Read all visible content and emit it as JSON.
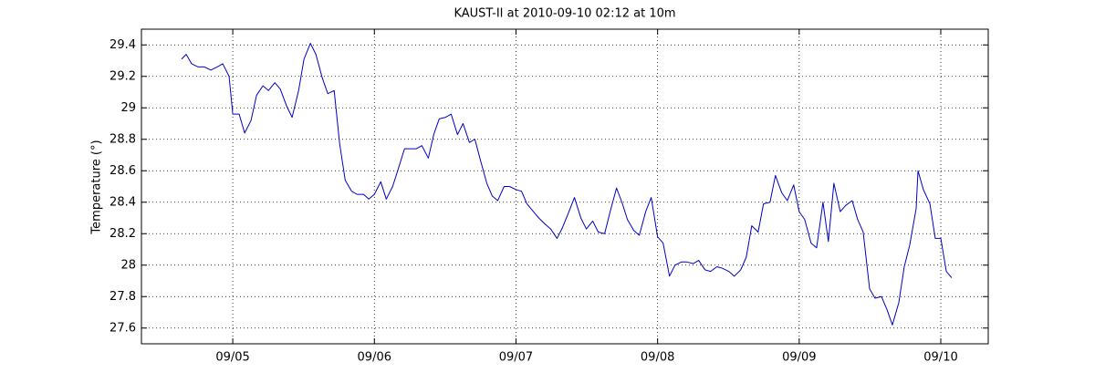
{
  "chart_data": {
    "type": "line",
    "title": "KAUST-II at 2010-09-10 02:12 at 10m",
    "y_label": "Temperature (°)",
    "color": "#0000c8",
    "grid": true,
    "xlim": [
      4.355,
      10.335
    ],
    "ylim": [
      27.5,
      29.5
    ],
    "xticks": [
      {
        "value": 5,
        "label": "09/05"
      },
      {
        "value": 6,
        "label": "09/06"
      },
      {
        "value": 7,
        "label": "09/07"
      },
      {
        "value": 8,
        "label": "09/08"
      },
      {
        "value": 9,
        "label": "09/09"
      },
      {
        "value": 10,
        "label": "09/10"
      }
    ],
    "yticks": [
      27.6,
      27.8,
      28,
      28.2,
      28.4,
      28.6,
      28.8,
      29,
      29.2,
      29.4
    ],
    "x": [
      4.639,
      4.671,
      4.71,
      4.755,
      4.8,
      4.845,
      4.89,
      4.929,
      4.974,
      5.0,
      5.045,
      5.084,
      5.129,
      5.168,
      5.213,
      5.252,
      5.297,
      5.335,
      5.381,
      5.419,
      5.465,
      5.503,
      5.548,
      5.587,
      5.632,
      5.671,
      5.716,
      5.755,
      5.794,
      5.839,
      5.877,
      5.923,
      5.961,
      6.0,
      6.045,
      6.084,
      6.129,
      6.168,
      6.213,
      6.252,
      6.297,
      6.335,
      6.381,
      6.419,
      6.458,
      6.503,
      6.542,
      6.587,
      6.626,
      6.671,
      6.71,
      6.748,
      6.794,
      6.832,
      6.871,
      6.916,
      6.955,
      7.0,
      7.039,
      7.077,
      7.123,
      7.161,
      7.206,
      7.245,
      7.29,
      7.329,
      7.374,
      7.413,
      7.458,
      7.497,
      7.542,
      7.581,
      7.626,
      7.665,
      7.71,
      7.748,
      7.787,
      7.832,
      7.871,
      7.916,
      7.955,
      8.0,
      8.039,
      8.084,
      8.123,
      8.168,
      8.206,
      8.252,
      8.29,
      8.335,
      8.374,
      8.419,
      8.458,
      8.503,
      8.542,
      8.587,
      8.626,
      8.665,
      8.71,
      8.748,
      8.794,
      8.832,
      8.877,
      8.916,
      8.961,
      9.0,
      9.039,
      9.084,
      9.123,
      9.168,
      9.206,
      9.245,
      9.29,
      9.329,
      9.374,
      9.413,
      9.452,
      9.497,
      9.535,
      9.581,
      9.619,
      9.658,
      9.703,
      9.742,
      9.781,
      9.826,
      9.839,
      9.877,
      9.923,
      9.961,
      10.0,
      10.039,
      10.077
    ],
    "values": [
      29.31,
      29.34,
      29.28,
      29.26,
      29.26,
      29.24,
      29.26,
      29.28,
      29.2,
      28.96,
      28.96,
      28.84,
      28.92,
      29.08,
      29.14,
      29.11,
      29.16,
      29.12,
      29.01,
      28.94,
      29.11,
      29.31,
      29.41,
      29.34,
      29.19,
      29.09,
      29.11,
      28.77,
      28.54,
      28.47,
      28.45,
      28.45,
      28.42,
      28.45,
      28.53,
      28.42,
      28.5,
      28.61,
      28.74,
      28.74,
      28.74,
      28.76,
      28.68,
      28.83,
      28.93,
      28.94,
      28.96,
      28.83,
      28.9,
      28.78,
      28.8,
      28.67,
      28.52,
      28.44,
      28.41,
      28.5,
      28.5,
      28.48,
      28.47,
      28.39,
      28.34,
      28.3,
      28.26,
      28.23,
      28.17,
      28.24,
      28.34,
      28.43,
      28.3,
      28.23,
      28.28,
      28.21,
      28.2,
      28.34,
      28.49,
      28.4,
      28.29,
      28.22,
      28.19,
      28.34,
      28.43,
      28.18,
      28.14,
      27.93,
      28.0,
      28.02,
      28.02,
      28.01,
      28.03,
      27.97,
      27.96,
      27.99,
      27.98,
      27.96,
      27.93,
      27.97,
      28.05,
      28.25,
      28.21,
      28.39,
      28.4,
      28.57,
      28.46,
      28.41,
      28.51,
      28.34,
      28.29,
      28.14,
      28.11,
      28.4,
      28.15,
      28.52,
      28.34,
      28.38,
      28.41,
      28.29,
      28.21,
      27.85,
      27.79,
      27.8,
      27.72,
      27.62,
      27.76,
      27.99,
      28.13,
      28.36,
      28.6,
      28.48,
      28.39,
      28.17,
      28.17,
      27.96,
      27.92
    ]
  }
}
